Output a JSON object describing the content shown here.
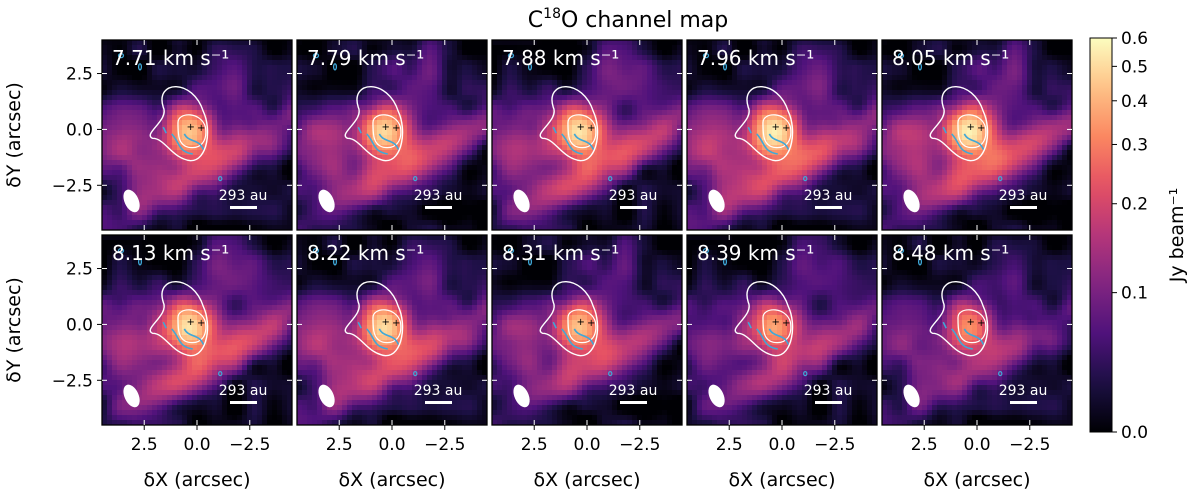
{
  "chart_data": {
    "type": "heatmap",
    "title": "C18O channel map",
    "title_parts": {
      "pre": "C",
      "sup": "18",
      "post": "O channel map"
    },
    "xlabel": "δX (arcsec)",
    "ylabel": "δY (arcsec)",
    "xlim": [
      4.5,
      -4.5
    ],
    "ylim": [
      -4.5,
      4.0
    ],
    "x_ticks": [
      2.5,
      0.0,
      -2.5
    ],
    "x_tick_labels": [
      "2.5",
      "0.0",
      "−2.5"
    ],
    "y_ticks": [
      2.5,
      0.0,
      -2.5
    ],
    "y_tick_labels": [
      "2.5",
      "0.0",
      "−2.5"
    ],
    "channels": [
      {
        "velocity": "7.71 km s⁻¹",
        "row": 0,
        "col": 0,
        "strength": 0.8
      },
      {
        "velocity": "7.79 km s⁻¹",
        "row": 0,
        "col": 1,
        "strength": 0.88
      },
      {
        "velocity": "7.88 km s⁻¹",
        "row": 0,
        "col": 2,
        "strength": 0.95
      },
      {
        "velocity": "7.96 km s⁻¹",
        "row": 0,
        "col": 3,
        "strength": 1.0
      },
      {
        "velocity": "8.05 km s⁻¹",
        "row": 0,
        "col": 4,
        "strength": 1.0
      },
      {
        "velocity": "8.13 km s⁻¹",
        "row": 1,
        "col": 0,
        "strength": 0.95
      },
      {
        "velocity": "8.22 km s⁻¹",
        "row": 1,
        "col": 1,
        "strength": 0.9
      },
      {
        "velocity": "8.31 km s⁻¹",
        "row": 1,
        "col": 2,
        "strength": 0.78
      },
      {
        "velocity": "8.39 km s⁻¹",
        "row": 1,
        "col": 3,
        "strength": 0.68
      },
      {
        "velocity": "8.48 km s⁻¹",
        "row": 1,
        "col": 4,
        "strength": 0.6
      }
    ],
    "scale_bar_label": "293 au",
    "colorbar": {
      "label": "Jy beam⁻¹",
      "range": [
        0.0,
        0.6
      ],
      "scale": "asinh",
      "ticks": [
        0.0,
        0.1,
        0.2,
        0.3,
        0.4,
        0.5,
        0.6
      ],
      "tick_labels": [
        "0.0",
        "0.1",
        "0.2",
        "0.3",
        "0.4",
        "0.5",
        "0.6"
      ],
      "colormap": "magma",
      "colors": [
        "#000004",
        "#1c1044",
        "#4f127b",
        "#812581",
        "#b5367a",
        "#e55064",
        "#fb8761",
        "#fec287",
        "#fcfdbf"
      ]
    },
    "contour_colors": {
      "outer": "#ffffff",
      "inner": "#3fa8d8",
      "beam": "#ffffff",
      "markers": "#000000"
    },
    "grid": false,
    "legend": "none"
  }
}
